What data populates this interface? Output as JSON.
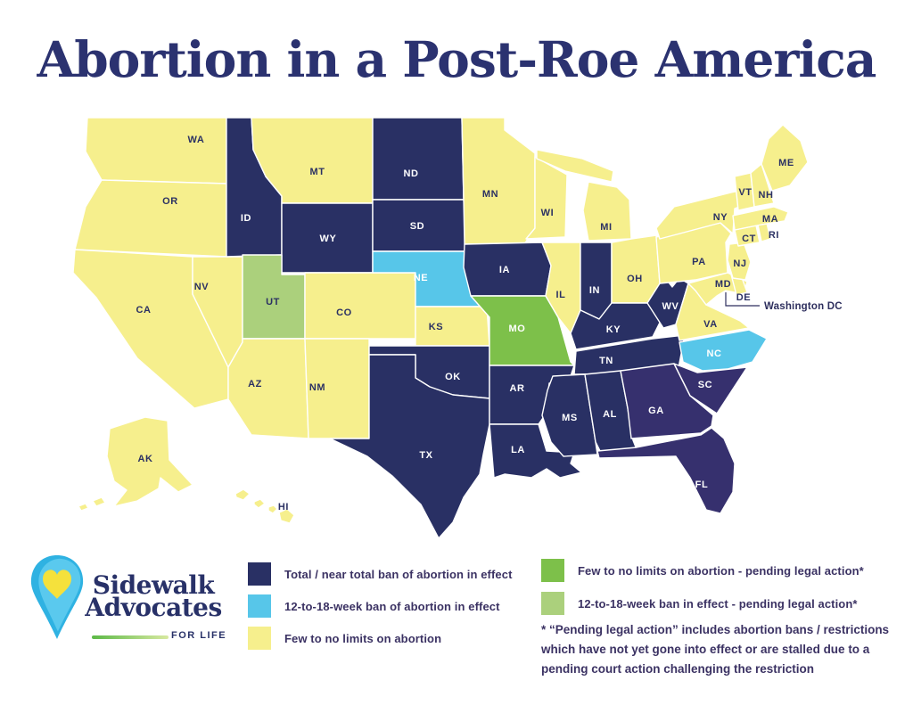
{
  "title": "Abortion in a Post-Roe America",
  "logo": {
    "line1": "Sidewalk",
    "line2": "Advocates",
    "tagline": "FOR LIFE"
  },
  "colors": {
    "title_navy": "#2b3270",
    "text_indigo": "#3b3263",
    "state_label_dark": "#2b3163",
    "state_label_light": "#ffffff",
    "total": "#293064",
    "total_alt": "#36306e",
    "ban_12_18": "#57c6e9",
    "few_none": "#f6ef8d",
    "pending_few_none": "#7dc04a",
    "pending_12_18": "#abd07c",
    "logo_blue": "#2fb2e2",
    "logo_blue_light": "#5ac9ee",
    "logo_yellow": "#f5e13c",
    "logo_green": "#5cb947",
    "logo_navy": "#283168"
  },
  "legend": {
    "left": [
      {
        "category": "total",
        "label": "Total / near total ban of abortion in effect"
      },
      {
        "category": "ban_12_18",
        "label": "12-to-18-week ban of abortion in effect"
      },
      {
        "category": "few_none",
        "label": "Few to no limits on abortion"
      }
    ],
    "right": [
      {
        "category": "pending_few_none",
        "label": "Few to no limits on abortion - pending legal action*"
      },
      {
        "category": "pending_12_18",
        "label": "12-to-18-week ban in effect - pending legal action*"
      }
    ],
    "footnote": "* “Pending legal action” includes abortion bans / restrictions which have not yet gone into effect or are stalled due to a pending court action challenging the restriction"
  },
  "map": {
    "dc_label": "Washington DC",
    "states": [
      {
        "abbr": "WA",
        "category": "few_none"
      },
      {
        "abbr": "OR",
        "category": "few_none"
      },
      {
        "abbr": "CA",
        "category": "few_none"
      },
      {
        "abbr": "NV",
        "category": "few_none"
      },
      {
        "abbr": "ID",
        "category": "total"
      },
      {
        "abbr": "MT",
        "category": "few_none"
      },
      {
        "abbr": "WY",
        "category": "total"
      },
      {
        "abbr": "UT",
        "category": "pending_12_18"
      },
      {
        "abbr": "CO",
        "category": "few_none"
      },
      {
        "abbr": "AZ",
        "category": "few_none"
      },
      {
        "abbr": "NM",
        "category": "few_none"
      },
      {
        "abbr": "ND",
        "category": "total"
      },
      {
        "abbr": "SD",
        "category": "total"
      },
      {
        "abbr": "NE",
        "category": "ban_12_18"
      },
      {
        "abbr": "KS",
        "category": "few_none"
      },
      {
        "abbr": "OK",
        "category": "total"
      },
      {
        "abbr": "TX",
        "category": "total"
      },
      {
        "abbr": "MN",
        "category": "few_none"
      },
      {
        "abbr": "IA",
        "category": "total"
      },
      {
        "abbr": "MO",
        "category": "pending_few_none"
      },
      {
        "abbr": "AR",
        "category": "total"
      },
      {
        "abbr": "LA",
        "category": "total"
      },
      {
        "abbr": "WI",
        "category": "few_none"
      },
      {
        "abbr": "IL",
        "category": "few_none"
      },
      {
        "abbr": "MI",
        "category": "few_none"
      },
      {
        "abbr": "IN",
        "category": "total"
      },
      {
        "abbr": "OH",
        "category": "few_none"
      },
      {
        "abbr": "KY",
        "category": "total"
      },
      {
        "abbr": "TN",
        "category": "total"
      },
      {
        "abbr": "MS",
        "category": "total"
      },
      {
        "abbr": "AL",
        "category": "total"
      },
      {
        "abbr": "GA",
        "category": "total_alt"
      },
      {
        "abbr": "SC",
        "category": "total_alt"
      },
      {
        "abbr": "FL",
        "category": "total_alt"
      },
      {
        "abbr": "WV",
        "category": "total"
      },
      {
        "abbr": "VA",
        "category": "few_none"
      },
      {
        "abbr": "NC",
        "category": "ban_12_18"
      },
      {
        "abbr": "MD",
        "category": "few_none"
      },
      {
        "abbr": "DE",
        "category": "few_none"
      },
      {
        "abbr": "PA",
        "category": "few_none"
      },
      {
        "abbr": "NJ",
        "category": "few_none"
      },
      {
        "abbr": "NY",
        "category": "few_none"
      },
      {
        "abbr": "CT",
        "category": "few_none"
      },
      {
        "abbr": "RI",
        "category": "few_none"
      },
      {
        "abbr": "MA",
        "category": "few_none"
      },
      {
        "abbr": "VT",
        "category": "few_none"
      },
      {
        "abbr": "NH",
        "category": "few_none"
      },
      {
        "abbr": "ME",
        "category": "few_none"
      },
      {
        "abbr": "AK",
        "category": "few_none"
      },
      {
        "abbr": "HI",
        "category": "few_none"
      }
    ]
  }
}
